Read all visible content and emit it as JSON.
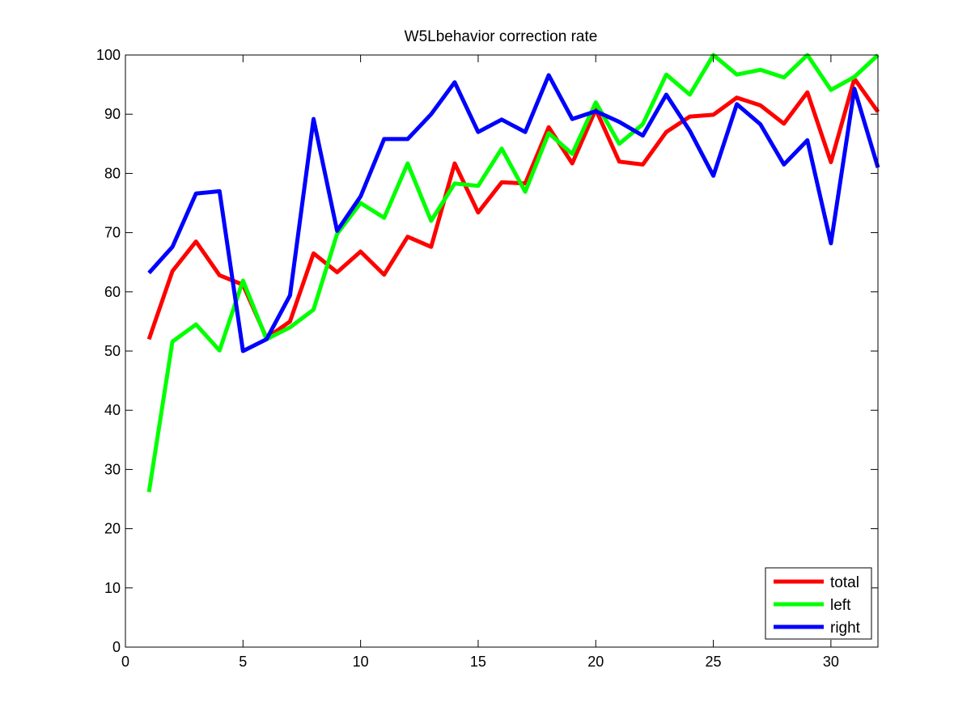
{
  "chart_data": {
    "type": "line",
    "title": "W5Lbehavior correction rate",
    "xlabel": "",
    "ylabel": "",
    "xlim": [
      0,
      32
    ],
    "ylim": [
      0,
      100
    ],
    "xticks": [
      0,
      5,
      10,
      15,
      20,
      25,
      30
    ],
    "yticks": [
      0,
      10,
      20,
      30,
      40,
      50,
      60,
      70,
      80,
      90,
      100
    ],
    "grid": false,
    "legend_position": "bottom-right",
    "x": [
      1,
      2,
      3,
      4,
      5,
      6,
      7,
      8,
      9,
      10,
      11,
      12,
      13,
      14,
      15,
      16,
      17,
      18,
      19,
      20,
      21,
      22,
      23,
      24,
      25,
      26,
      27,
      28,
      29,
      30,
      31,
      32
    ],
    "series": [
      {
        "name": "total",
        "color": "#ff0000",
        "values": [
          52,
          63.5,
          68.5,
          62.8,
          61.2,
          52.2,
          55,
          66.5,
          63.3,
          66.8,
          62.9,
          69.3,
          67.6,
          81.7,
          73.4,
          78.5,
          78.3,
          87.8,
          81.7,
          90.8,
          82,
          81.5,
          87,
          89.6,
          89.9,
          92.8,
          91.5,
          88.4,
          93.7,
          81.9,
          96,
          90.4
        ]
      },
      {
        "name": "left",
        "color": "#00ff00",
        "values": [
          26.2,
          51.6,
          54.5,
          50.1,
          61.9,
          52,
          54,
          57,
          69.8,
          75,
          72.5,
          81.7,
          72,
          78.3,
          77.9,
          84.2,
          76.9,
          86.8,
          83.3,
          92,
          85,
          88.3,
          96.7,
          93.3,
          100,
          96.7,
          97.5,
          96.2,
          100,
          94.1,
          96.3,
          100
        ]
      },
      {
        "name": "right",
        "color": "#0000ff",
        "values": [
          63.2,
          67.6,
          76.6,
          77,
          50,
          52,
          59.4,
          89.2,
          70.3,
          76.1,
          85.8,
          85.8,
          90,
          95.4,
          87,
          89.1,
          87,
          96.6,
          89.2,
          90.5,
          88.7,
          86.4,
          93.3,
          87.2,
          79.6,
          91.7,
          88.3,
          81.5,
          85.6,
          68.2,
          94.3,
          81
        ]
      }
    ]
  }
}
